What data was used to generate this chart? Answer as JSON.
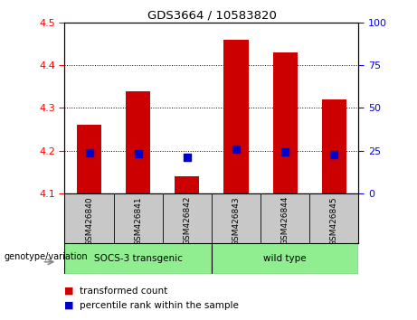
{
  "title": "GDS3664 / 10583820",
  "samples": [
    "GSM426840",
    "GSM426841",
    "GSM426842",
    "GSM426843",
    "GSM426844",
    "GSM426845"
  ],
  "red_values": [
    4.26,
    4.34,
    4.14,
    4.46,
    4.43,
    4.32
  ],
  "blue_values": [
    4.195,
    4.193,
    4.185,
    4.203,
    4.197,
    4.192
  ],
  "red_base": 4.1,
  "ylim": [
    4.1,
    4.5
  ],
  "yticks_left": [
    4.1,
    4.2,
    4.3,
    4.4,
    4.5
  ],
  "yticks_right": [
    0,
    25,
    50,
    75,
    100
  ],
  "genotype_label": "genotype/variation",
  "legend_red": "transformed count",
  "legend_blue": "percentile rank within the sample",
  "red_color": "#cc0000",
  "blue_color": "#0000cc",
  "bar_width": 0.5,
  "bg_color": "#ffffff",
  "tick_area_color": "#c8c8c8",
  "group_area_color": "#90ee90",
  "socs_label": "SOCS-3 transgenic",
  "wt_label": "wild type"
}
